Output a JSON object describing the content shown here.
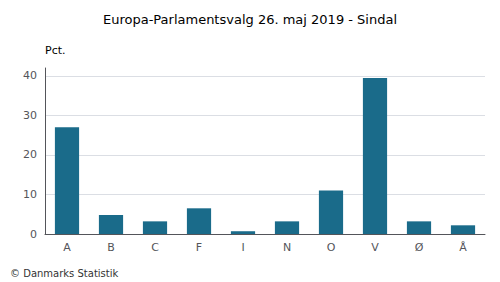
{
  "chart_data": {
    "type": "bar",
    "title": "Europa-Parlamentsvalg 26. maj 2019 - Sindal",
    "categories": [
      "A",
      "B",
      "C",
      "F",
      "I",
      "N",
      "O",
      "V",
      "Ø",
      "Å"
    ],
    "values": [
      27.0,
      4.8,
      3.2,
      6.5,
      0.7,
      3.2,
      11.0,
      39.5,
      3.2,
      2.2
    ],
    "color": "#1a6b8a",
    "ylabel": "Pct.",
    "ylim": [
      0,
      42
    ],
    "yticks": [
      0,
      10,
      20,
      30,
      40
    ],
    "grid": true,
    "annotations": [
      "© Danmarks Statistik"
    ]
  }
}
